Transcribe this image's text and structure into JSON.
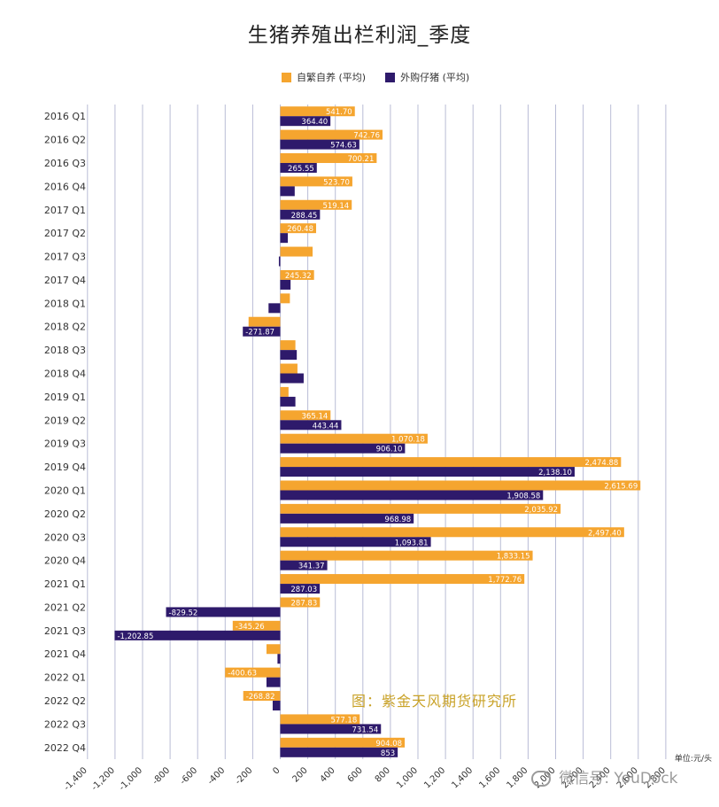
{
  "chart_data": {
    "type": "bar",
    "orientation": "horizontal",
    "title": "生猪养殖出栏利润_季度",
    "unit_label": "单位:元/头",
    "source_label": "图：紫金天风期货研究所",
    "xlim": [
      -1400,
      2800
    ],
    "x_ticks": [
      -1400,
      -1200,
      -1000,
      -800,
      -600,
      -400,
      -200,
      0,
      200,
      400,
      600,
      800,
      1000,
      1200,
      1400,
      1600,
      1800,
      2000,
      2200,
      2400,
      2600,
      2800
    ],
    "x_tick_labels": [
      "-1,400",
      "-1,200",
      "-1,000",
      "-800",
      "-600",
      "-400",
      "-200",
      "0",
      "200",
      "400",
      "600",
      "800",
      "1,000",
      "1,200",
      "1,400",
      "1,600",
      "1,800",
      "2,000",
      "2,200",
      "2,400",
      "2,600",
      "2,800"
    ],
    "grid": true,
    "legend_position": "top",
    "categories": [
      "2016 Q1",
      "2016 Q2",
      "2016 Q3",
      "2016 Q4",
      "2017 Q1",
      "2017 Q2",
      "2017 Q3",
      "2017 Q4",
      "2018 Q1",
      "2018 Q2",
      "2018 Q3",
      "2018 Q4",
      "2019 Q1",
      "2019 Q2",
      "2019 Q3",
      "2019 Q4",
      "2020 Q1",
      "2020 Q2",
      "2020 Q3",
      "2020 Q4",
      "2021 Q1",
      "2021 Q2",
      "2021 Q3",
      "2021 Q4",
      "2022 Q1",
      "2022 Q2",
      "2022 Q3",
      "2022 Q4"
    ],
    "series": [
      {
        "name": "自繁自养 (平均)",
        "color": "#f5a52f",
        "values": [
          541.7,
          742.76,
          700.21,
          523.7,
          519.14,
          260.48,
          235,
          245.32,
          70,
          -230,
          110,
          125,
          60,
          365.14,
          1070.18,
          2474.88,
          2615.69,
          2035.92,
          2497.4,
          1833.15,
          1772.76,
          287.83,
          -345.26,
          -100,
          -400.63,
          -268.82,
          577.18,
          904.08
        ],
        "labels": [
          "541.70",
          "742.76",
          "700.21",
          "523.70",
          "519.14",
          "260.48",
          "",
          "245.32",
          "",
          "",
          "",
          "",
          "",
          "365.14",
          "1,070.18",
          "2,474.88",
          "2,615.69",
          "2,035.92",
          "2,497.40",
          "1,833.15",
          "1,772.76",
          "287.83",
          "-345.26",
          "",
          "-400.63",
          "-268.82",
          "577.18",
          "904.08"
        ]
      },
      {
        "name": "外购仔猪 (平均)",
        "color": "#2e1a6b",
        "values": [
          364.4,
          574.63,
          265.55,
          105,
          288.45,
          55,
          -10,
          75,
          -85,
          -271.87,
          120,
          170,
          110,
          443.44,
          906.1,
          2138.1,
          1908.58,
          968.98,
          1093.81,
          341.37,
          287.03,
          -829.52,
          -1202.85,
          -20,
          -100,
          -55,
          731.54,
          853
        ],
        "labels": [
          "364.40",
          "574.63",
          "265.55",
          "",
          "288.45",
          "",
          "",
          "",
          "",
          "-271.87",
          "",
          "",
          "",
          "443.44",
          "906.10",
          "2,138.10",
          "1,908.58",
          "968.98",
          "1,093.81",
          "341.37",
          "287.03",
          "-829.52",
          "-1,202.85",
          "",
          "",
          "",
          "731.54",
          "853"
        ]
      }
    ]
  },
  "watermark": "微信号: YouDock",
  "colors": {
    "orange": "#f5a52f",
    "purple": "#2e1a6b",
    "grid": "#b9bcd6",
    "source": "#c9a227"
  }
}
